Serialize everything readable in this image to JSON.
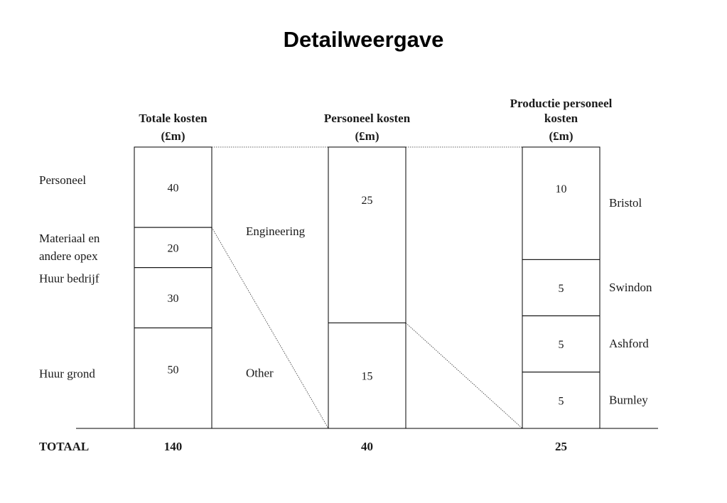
{
  "title": "Detailweergave",
  "chart_data": {
    "type": "bar",
    "unit": "£m",
    "columns": [
      {
        "header": [
          "Totale kosten",
          "(£m)"
        ],
        "segments": [
          {
            "label": "Personeel",
            "value": 40
          },
          {
            "label": "Materiaal en andere opex",
            "label_lines": [
              "Materiaal en",
              "andere opex"
            ],
            "value": 20
          },
          {
            "label": "Huur bedrijf",
            "value": 30
          },
          {
            "label": "Huur grond",
            "value": 50
          }
        ],
        "total": 140
      },
      {
        "header": [
          "Personeel kosten",
          "(£m)"
        ],
        "segments": [
          {
            "label": "Engineering",
            "value": 25
          },
          {
            "label": "Other",
            "value": 15
          }
        ],
        "total": 40
      },
      {
        "header": [
          "Productie personeel",
          "kosten",
          "(£m)"
        ],
        "segments": [
          {
            "label": "Bristol",
            "value": 10
          },
          {
            "label": "Swindon",
            "value": 5
          },
          {
            "label": "Ashford",
            "value": 5
          },
          {
            "label": "Burnley",
            "value": 5
          }
        ],
        "total": 25
      }
    ],
    "total_label": "TOTAAL"
  }
}
